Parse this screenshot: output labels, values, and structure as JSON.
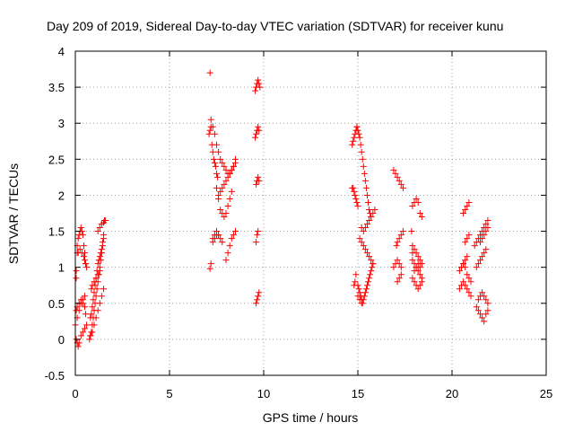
{
  "chart_data": {
    "type": "scatter",
    "title": "Day 209 of 2019, Sidereal Day-to-day VTEC variation (SDTVAR) for receiver kunu",
    "xlabel": "GPS time / hours",
    "ylabel": "SDTVAR / TECUs",
    "xlim": [
      0,
      25
    ],
    "ylim": [
      -0.5,
      4
    ],
    "x_ticks": [
      0,
      5,
      10,
      15,
      20,
      25
    ],
    "x_tick_labels": [
      "0",
      "5",
      "10",
      "15",
      "20",
      "25"
    ],
    "y_ticks": [
      -0.5,
      0,
      0.5,
      1,
      1.5,
      2,
      2.5,
      3,
      3.5,
      4
    ],
    "y_tick_labels": [
      "-0.5",
      "0",
      "0.5",
      "1",
      "1.5",
      "2",
      "2.5",
      "3",
      "3.5",
      "4"
    ],
    "grid": true,
    "marker": "+",
    "marker_color": "#ff0000",
    "series": [
      {
        "name": "SDTVAR",
        "x": [
          0.05,
          0.05,
          0.1,
          0.1,
          0.15,
          0.2,
          0.25,
          0.3,
          0.35,
          0.4,
          0.45,
          0.5,
          0.55,
          0.6,
          0.05,
          0.1,
          0.2,
          0.3,
          0.4,
          0.5,
          0.55,
          0.05,
          0.1,
          0.15,
          0.2,
          0.3,
          0.4,
          0.5,
          0.6,
          0.0,
          0.1,
          0.2,
          0.3,
          0.4,
          0.5,
          0.15,
          0.25,
          0.35,
          0.45,
          0.5,
          0.55,
          0.75,
          0.8,
          0.85,
          0.9,
          0.95,
          1.0,
          1.05,
          1.1,
          1.15,
          1.2,
          1.25,
          1.3,
          1.35,
          1.4,
          1.45,
          1.5,
          0.8,
          0.85,
          0.9,
          0.95,
          1.0,
          1.05,
          1.1,
          1.15,
          1.2,
          1.25,
          1.3,
          1.35,
          1.4,
          1.45,
          1.5,
          0.8,
          0.9,
          1.0,
          1.1,
          1.2,
          1.3,
          1.4,
          1.5,
          1.2,
          1.3,
          1.4,
          1.5,
          1.55,
          1.6,
          0.85,
          0.9,
          1.0,
          1.1,
          1.2,
          1.3,
          7.1,
          7.15,
          7.2,
          7.25,
          7.3,
          7.35,
          7.4,
          7.45,
          7.5,
          7.55,
          7.2,
          7.3,
          7.4,
          7.5,
          7.6,
          7.7,
          7.8,
          7.9,
          8.0,
          8.1,
          8.2,
          8.3,
          8.4,
          8.5,
          7.6,
          7.7,
          7.8,
          7.9,
          8.0,
          8.1,
          8.2,
          8.3,
          8.4,
          8.5,
          7.5,
          7.6,
          7.7,
          7.8,
          7.9,
          8.0,
          8.1,
          8.2,
          8.3,
          7.3,
          7.4,
          7.5,
          7.6,
          7.7,
          7.8,
          7.2,
          7.3,
          7.4,
          7.5,
          7.6,
          8.0,
          8.1,
          8.2,
          8.3,
          8.4,
          8.5,
          7.15,
          7.15,
          9.55,
          9.6,
          9.65,
          9.7,
          9.75,
          9.8,
          9.55,
          9.6,
          9.65,
          9.7,
          9.75,
          9.6,
          9.65,
          9.7,
          9.75,
          9.6,
          9.65,
          9.7,
          9.6,
          9.65,
          9.7,
          9.75,
          14.7,
          14.75,
          14.8,
          14.85,
          14.9,
          14.95,
          14.95,
          15.0,
          15.05,
          15.1,
          15.15,
          15.2,
          15.25,
          15.3,
          15.35,
          15.4,
          15.45,
          15.5,
          15.55,
          15.6,
          15.65,
          15.7,
          14.7,
          14.75,
          14.8,
          14.85,
          14.9,
          14.95,
          15.0,
          15.0,
          15.05,
          15.1,
          15.15,
          15.2,
          15.25,
          15.3,
          15.35,
          15.4,
          15.45,
          15.5,
          15.55,
          15.6,
          15.65,
          15.7,
          15.75,
          15.8,
          15.2,
          15.3,
          15.4,
          15.5,
          15.6,
          15.7,
          15.8,
          15.9,
          15.1,
          15.2,
          15.3,
          15.4,
          15.5,
          15.6,
          15.7,
          15.8,
          14.8,
          14.85,
          14.9,
          15.0,
          15.1,
          15.2,
          16.9,
          17.0,
          17.1,
          17.2,
          17.3,
          17.4,
          16.9,
          17.0,
          17.1,
          17.2,
          17.3,
          17.05,
          17.1,
          17.2,
          17.3,
          17.4,
          17.1,
          17.2,
          17.3,
          17.9,
          18.0,
          18.1,
          18.2,
          18.3,
          18.4,
          17.9,
          18.0,
          18.1,
          18.2,
          18.3,
          18.4,
          17.9,
          18.0,
          18.1,
          18.2,
          18.3,
          18.4,
          17.9,
          18.0,
          18.1,
          18.2,
          18.3,
          18.4,
          18.0,
          18.1,
          18.2,
          18.3,
          17.85,
          17.9,
          20.4,
          20.5,
          20.6,
          20.7,
          20.8,
          20.9,
          21.0,
          20.4,
          20.5,
          20.6,
          20.7,
          20.8,
          20.9,
          21.0,
          20.6,
          20.7,
          20.8,
          20.9,
          20.7,
          20.8,
          20.9,
          20.5,
          20.6,
          20.7,
          20.8,
          21.2,
          21.3,
          21.4,
          21.5,
          21.6,
          21.7,
          21.8,
          21.9,
          21.3,
          21.4,
          21.5,
          21.6,
          21.7,
          21.8,
          21.9,
          21.3,
          21.4,
          21.5,
          21.6,
          21.7,
          21.8,
          21.5,
          21.6,
          21.7,
          21.8,
          21.9,
          21.4,
          21.5,
          21.6,
          21.7,
          21.8,
          21.9
        ],
        "y": [
          0.85,
          0.95,
          1.2,
          1.3,
          1.4,
          1.45,
          1.5,
          1.55,
          1.5,
          1.45,
          1.3,
          1.2,
          1.05,
          1.0,
          0.4,
          0.45,
          0.5,
          0.55,
          0.5,
          0.45,
          0.35,
          0.0,
          -0.05,
          -0.1,
          -0.05,
          0.05,
          0.1,
          0.15,
          0.2,
          0.2,
          0.3,
          0.4,
          0.5,
          0.55,
          0.6,
          1.2,
          1.25,
          1.2,
          1.15,
          1.1,
          1.05,
          0.0,
          0.05,
          0.1,
          0.2,
          0.3,
          0.4,
          0.5,
          0.6,
          0.7,
          0.8,
          0.9,
          1.0,
          1.1,
          1.2,
          1.3,
          1.4,
          0.3,
          0.35,
          0.45,
          0.55,
          0.65,
          0.75,
          0.85,
          0.95,
          1.05,
          1.1,
          1.15,
          1.2,
          1.25,
          1.35,
          1.45,
          0.05,
          0.1,
          0.2,
          0.3,
          0.4,
          0.5,
          0.6,
          0.7,
          1.5,
          1.55,
          1.6,
          1.62,
          1.65,
          1.65,
          0.7,
          0.75,
          0.8,
          0.85,
          0.9,
          0.95,
          2.85,
          2.9,
          2.95,
          2.7,
          2.6,
          2.5,
          2.45,
          2.4,
          2.3,
          2.25,
          3.05,
          2.95,
          2.85,
          2.7,
          2.6,
          2.5,
          2.45,
          2.4,
          2.35,
          2.3,
          2.3,
          2.35,
          2.4,
          2.5,
          2.0,
          2.05,
          2.1,
          2.15,
          2.2,
          2.25,
          2.3,
          2.35,
          2.4,
          2.45,
          2.1,
          1.95,
          1.8,
          1.75,
          1.7,
          1.75,
          1.85,
          1.95,
          2.05,
          1.4,
          1.45,
          1.5,
          1.45,
          1.4,
          1.35,
          1.05,
          1.35,
          1.4,
          1.45,
          1.45,
          1.1,
          1.2,
          1.3,
          1.4,
          1.45,
          1.5,
          3.7,
          0.98,
          3.45,
          3.5,
          3.55,
          3.6,
          3.55,
          3.5,
          2.8,
          2.85,
          2.9,
          2.95,
          2.9,
          2.15,
          2.2,
          2.25,
          2.2,
          1.35,
          1.45,
          1.5,
          0.5,
          0.55,
          0.6,
          0.65,
          2.7,
          2.75,
          2.8,
          2.85,
          2.9,
          2.95,
          2.95,
          2.9,
          2.85,
          2.8,
          2.7,
          2.6,
          2.5,
          2.4,
          2.3,
          2.2,
          2.1,
          2.0,
          1.9,
          1.8,
          1.75,
          1.7,
          2.1,
          2.1,
          2.05,
          2.0,
          1.95,
          1.9,
          1.85,
          0.75,
          0.7,
          0.65,
          0.6,
          0.55,
          0.5,
          0.55,
          0.6,
          0.65,
          0.7,
          0.75,
          0.8,
          0.85,
          0.9,
          0.95,
          1.0,
          1.05,
          1.55,
          1.5,
          1.55,
          1.6,
          1.65,
          1.7,
          1.75,
          1.8,
          1.4,
          1.35,
          1.3,
          1.25,
          1.2,
          1.15,
          1.1,
          1.05,
          0.75,
          0.8,
          0.9,
          0.6,
          0.55,
          0.5,
          2.35,
          2.3,
          2.25,
          2.2,
          2.15,
          2.1,
          1.0,
          1.05,
          1.1,
          1.05,
          1.0,
          1.3,
          1.35,
          1.4,
          1.45,
          1.5,
          0.8,
          0.85,
          0.9,
          1.85,
          1.9,
          1.95,
          1.9,
          1.75,
          1.7,
          1.1,
          1.05,
          1.0,
          0.95,
          0.9,
          0.85,
          0.85,
          0.8,
          0.75,
          0.7,
          0.75,
          0.8,
          1.3,
          1.25,
          1.2,
          1.15,
          1.1,
          1.05,
          0.95,
          1.0,
          1.05,
          1.0,
          1.5,
          1.2,
          0.95,
          1.0,
          1.05,
          1.0,
          0.9,
          0.85,
          0.8,
          0.7,
          0.75,
          0.8,
          0.75,
          0.7,
          0.65,
          0.6,
          1.75,
          1.8,
          1.85,
          1.9,
          1.35,
          1.4,
          1.45,
          1.0,
          1.05,
          1.1,
          1.15,
          1.3,
          1.35,
          1.4,
          1.45,
          1.5,
          1.55,
          1.6,
          1.65,
          0.45,
          0.4,
          0.35,
          0.3,
          0.25,
          0.35,
          0.4,
          1.0,
          1.05,
          1.1,
          1.15,
          1.2,
          1.25,
          1.35,
          1.4,
          1.45,
          1.5,
          1.55,
          0.55,
          0.6,
          0.65,
          0.6,
          0.55,
          0.5
        ]
      }
    ]
  }
}
